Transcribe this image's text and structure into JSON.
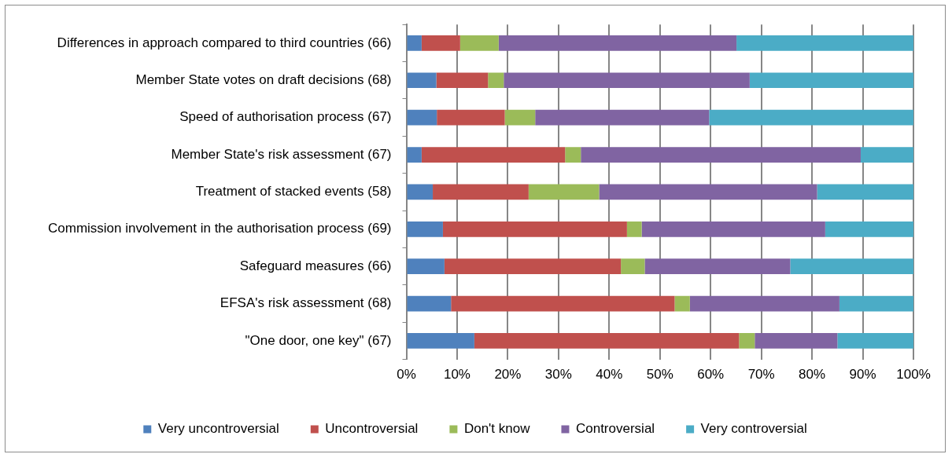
{
  "chart_data": {
    "type": "bar",
    "orientation": "horizontal",
    "stacked": true,
    "categories": [
      "Differences in approach compared to third countries (66)",
      "Member State votes on draft decisions (68)",
      "Speed of authorisation process (67)",
      "Member State's risk assessment (67)",
      "Treatment of stacked events (58)",
      "Commission involvement in the authorisation process (69)",
      "Safeguard measures (66)",
      "EFSA's risk assessment (68)",
      "\"One door, one key\" (67)"
    ],
    "series": [
      {
        "name": "Very uncontroversial",
        "color": "#4f81bd",
        "values": [
          3.0,
          5.9,
          6.0,
          3.0,
          5.2,
          7.2,
          7.5,
          8.8,
          13.4
        ]
      },
      {
        "name": "Uncontroversial",
        "color": "#c0504d",
        "values": [
          7.6,
          10.2,
          13.4,
          28.3,
          18.9,
          36.3,
          34.8,
          44.1,
          52.2
        ]
      },
      {
        "name": "Don't know",
        "color": "#9bbb59",
        "values": [
          7.6,
          3.1,
          6.0,
          3.1,
          13.9,
          2.9,
          4.7,
          3.0,
          3.1
        ]
      },
      {
        "name": "Controversial",
        "color": "#8064a2",
        "values": [
          46.9,
          48.5,
          34.3,
          55.2,
          43.0,
          36.2,
          28.7,
          29.5,
          16.3
        ]
      },
      {
        "name": "Very controversial",
        "color": "#4bacc6",
        "values": [
          34.9,
          32.3,
          40.3,
          10.4,
          19.0,
          17.4,
          24.3,
          14.6,
          15.0
        ]
      }
    ],
    "xlim": [
      0,
      100
    ],
    "xticks": [
      {
        "value": 0,
        "label": "0%"
      },
      {
        "value": 10,
        "label": "10%"
      },
      {
        "value": 20,
        "label": "20%"
      },
      {
        "value": 30,
        "label": "30%"
      },
      {
        "value": 40,
        "label": "40%"
      },
      {
        "value": 50,
        "label": "50%"
      },
      {
        "value": 60,
        "label": "60%"
      },
      {
        "value": 70,
        "label": "70%"
      },
      {
        "value": 80,
        "label": "80%"
      },
      {
        "value": 90,
        "label": "90%"
      },
      {
        "value": 100,
        "label": "100%"
      }
    ],
    "grid": "x",
    "legend": "bottom"
  }
}
